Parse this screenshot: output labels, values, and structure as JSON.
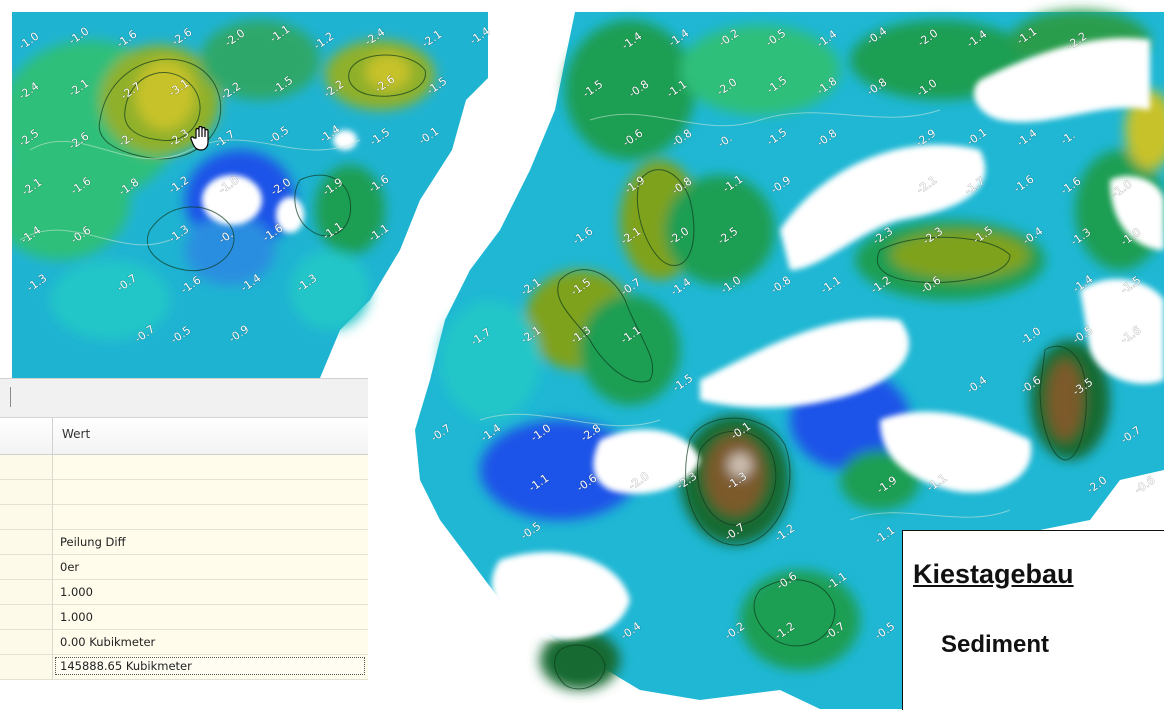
{
  "map": {
    "labels_left": [
      "-1.0",
      "-1.0",
      "-1.6",
      "-2.6",
      "-2.0",
      "-1.1",
      "-1.2",
      "-2.4",
      "-2.1",
      "-1.4",
      "-2.4",
      "-2.1",
      "-2.7",
      "-3.1",
      "-2.2",
      "-1.5",
      "-2.2",
      "-2.6",
      "-1.5",
      "-2.5",
      "-2.6",
      "-2.",
      "-2.3",
      "-1.7",
      "-0.5",
      "-1.4",
      "-1.5",
      "-0.1",
      "-2.1",
      "-1.6",
      "-1.8",
      "-1.2",
      "-1.0",
      "-2.0",
      "-1.9",
      "-1.6",
      "-1.4",
      "-0.6",
      "-1.3",
      "-0.",
      "-1.6",
      "-1.1",
      "-1.1",
      "-1.3",
      "-0.7",
      "-1.6",
      "-1.4",
      "-1.3",
      "-0.7",
      "-0.5",
      "-0.9"
    ],
    "labels_right": [
      "-1.4",
      "-1.4",
      "-0.2",
      "-0.5",
      "-1.4",
      "-0.4",
      "-2.0",
      "-1.4",
      "-1.1",
      "-2.2",
      "-1.5",
      "-0.8",
      "-1.1",
      "-2.0",
      "-1.5",
      "-1.8",
      "-0.8",
      "-1.0",
      "-0.6",
      "-0.8",
      "-0.",
      "-1.5",
      "-0.8",
      "-2.9",
      "-0.1",
      "-1.4",
      "-1.",
      "-1.9",
      "-0.8",
      "-1.1",
      "-0.9",
      "-2.1",
      "-1.7",
      "-1.6",
      "-1.6",
      "-1.0",
      "-1.6",
      "-2.1",
      "-2.0",
      "-2.5",
      "-2.3",
      "-2.3",
      "-1.5",
      "-0.4",
      "-1.3",
      "-1.0",
      "-2.1",
      "-1.5",
      "-0.7",
      "-1.4",
      "-1.0",
      "-0.8",
      "-1.1",
      "-1.2",
      "-0.6",
      "-1.4",
      "-1.5",
      "-1.7",
      "-2.1",
      "-1.3",
      "-1.1",
      "-1.0",
      "-0.5",
      "-1.6",
      "-1.5",
      "-0.4",
      "-0.6",
      "-3.5",
      "-0.7",
      "-1.4",
      "-1.0",
      "-2.8",
      "-0.1",
      "-0.7",
      "-1.1",
      "-0.6",
      "-2.0",
      "-2.3",
      "-1.3",
      "-1.9",
      "-1.1",
      "-2.0",
      "-0.6",
      "-0.5",
      "-0.7",
      "-1.2",
      "-1.1",
      "-1.1",
      "-0.6",
      "-0.4",
      "-0.2",
      "-1.2",
      "-0.7",
      "-0.5"
    ]
  },
  "properties": {
    "column_header": "Wert",
    "values": [
      "",
      "",
      "",
      "Peilung Diff",
      "0er",
      "1.000",
      "1.000",
      "0.00 Kubikmeter",
      "145888.65 Kubikmeter"
    ]
  },
  "title_box": {
    "title": "Kiestagebau",
    "subtitle": "Sediment"
  },
  "colors": {
    "deep": "#1a3cff",
    "water": "#19a4e6",
    "cyan": "#22d3cf",
    "green_light": "#3fcf7a",
    "green": "#1f9e52",
    "green_dark": "#136b33",
    "olive": "#7fa21c",
    "yellow": "#c7c22a",
    "brown": "#7b5a2a"
  }
}
